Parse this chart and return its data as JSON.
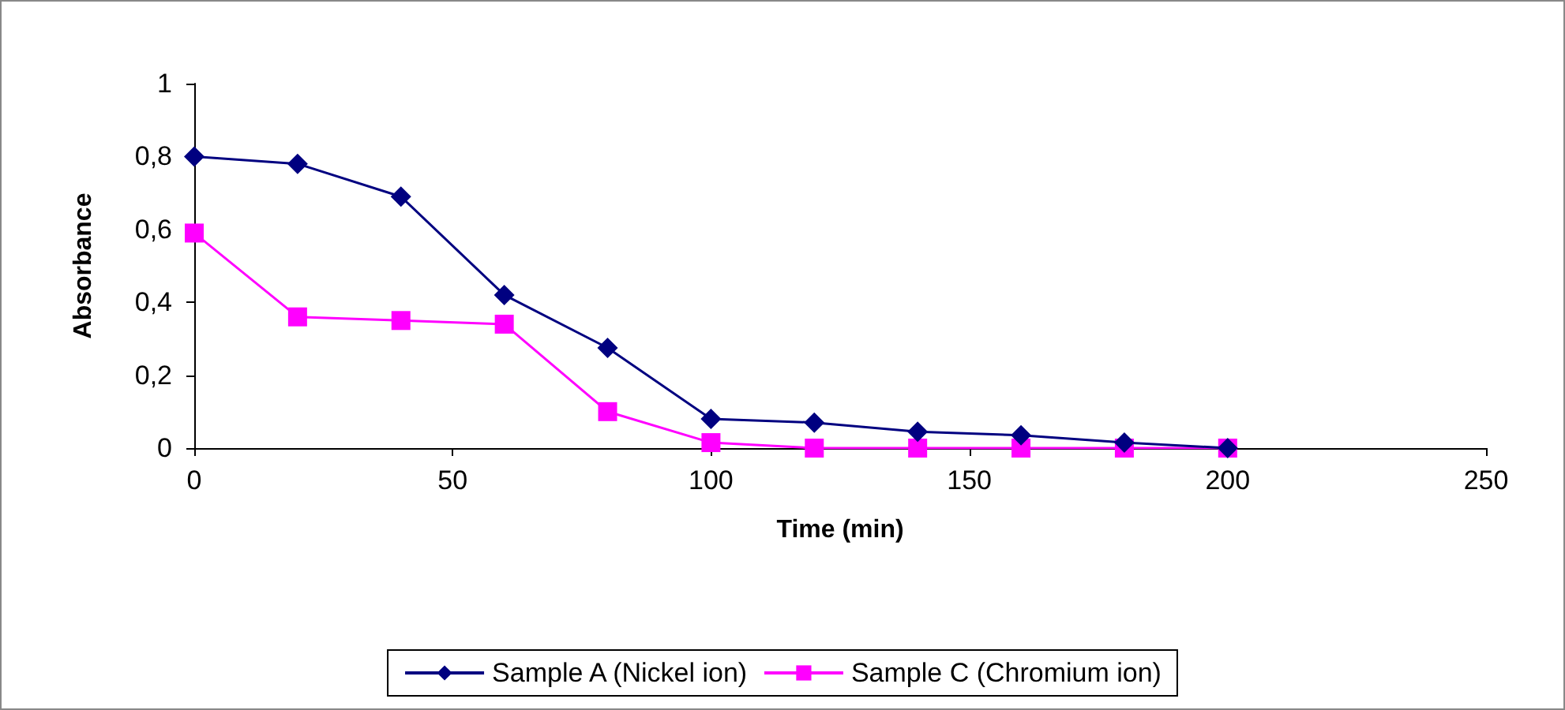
{
  "chart_data": {
    "type": "line",
    "xlabel": "Time (min)",
    "ylabel": "Absorbance",
    "x": [
      0,
      20,
      40,
      60,
      80,
      100,
      120,
      140,
      160,
      180,
      200
    ],
    "series": [
      {
        "name": "Sample A (Nickel ion)",
        "color": "#000080",
        "marker": "diamond",
        "values": [
          0.8,
          0.78,
          0.69,
          0.42,
          0.275,
          0.08,
          0.07,
          0.045,
          0.035,
          0.015,
          0
        ]
      },
      {
        "name": "Sample C (Chromium ion)",
        "color": "#ff00ff",
        "marker": "square",
        "values": [
          0.59,
          0.36,
          0.35,
          0.34,
          0.1,
          0.015,
          0,
          0,
          0,
          0,
          0
        ]
      }
    ],
    "xlim": [
      0,
      250
    ],
    "xticks": [
      0,
      50,
      100,
      150,
      200,
      250
    ],
    "ylim": [
      0,
      1
    ],
    "yticks": [
      {
        "value": 0,
        "label": "0"
      },
      {
        "value": 0.2,
        "label": "0,2"
      },
      {
        "value": 0.4,
        "label": "0,4"
      },
      {
        "value": 0.6,
        "label": "0,6"
      },
      {
        "value": 0.8,
        "label": "0,8"
      },
      {
        "value": 1,
        "label": "1"
      }
    ],
    "grid": false,
    "legend": "bottom",
    "line_style": "solid"
  }
}
